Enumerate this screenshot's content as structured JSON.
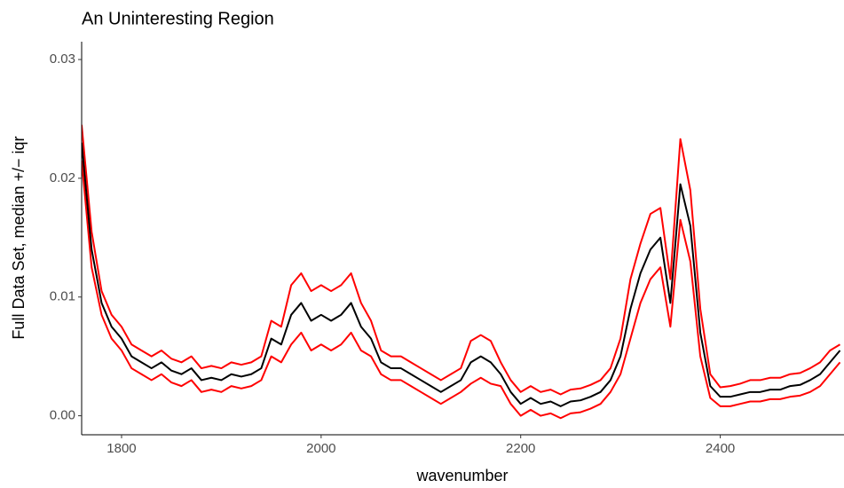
{
  "chart_data": {
    "type": "line",
    "title": "An Uninteresting Region",
    "x_label": "wavenumber",
    "y_label": "Full Data Set, median +/− iqr",
    "x": [
      1760,
      1770,
      1780,
      1790,
      1800,
      1810,
      1820,
      1830,
      1840,
      1850,
      1860,
      1870,
      1880,
      1890,
      1900,
      1910,
      1920,
      1930,
      1940,
      1950,
      1960,
      1970,
      1980,
      1990,
      2000,
      2010,
      2020,
      2030,
      2040,
      2050,
      2060,
      2070,
      2080,
      2090,
      2100,
      2110,
      2120,
      2130,
      2140,
      2150,
      2160,
      2170,
      2180,
      2190,
      2200,
      2210,
      2220,
      2230,
      2240,
      2250,
      2260,
      2270,
      2280,
      2290,
      2300,
      2310,
      2320,
      2330,
      2340,
      2350,
      2360,
      2370,
      2380,
      2390,
      2400,
      2410,
      2420,
      2430,
      2440,
      2450,
      2460,
      2470,
      2480,
      2490,
      2500,
      2510,
      2520
    ],
    "series": [
      {
        "color": "#ff0000",
        "values": [
          0.0215,
          0.0125,
          0.0085,
          0.0065,
          0.0055,
          0.004,
          0.0035,
          0.003,
          0.0035,
          0.0028,
          0.0025,
          0.003,
          0.002,
          0.0022,
          0.002,
          0.0025,
          0.0023,
          0.0025,
          0.003,
          0.005,
          0.0045,
          0.006,
          0.007,
          0.0055,
          0.006,
          0.0055,
          0.006,
          0.007,
          0.0055,
          0.005,
          0.0035,
          0.003,
          0.003,
          0.0025,
          0.002,
          0.0015,
          0.001,
          0.0015,
          0.002,
          0.0027,
          0.0032,
          0.0027,
          0.0025,
          0.001,
          0,
          0.0005,
          0,
          0.0002,
          -0.0002,
          0.0002,
          0.0003,
          0.0006,
          0.001,
          0.002,
          0.0035,
          0.0065,
          0.0095,
          0.0115,
          0.0125,
          0.0075,
          0.0165,
          0.013,
          0.005,
          0.0015,
          0.0008,
          0.0008,
          0.001,
          0.0012,
          0.0012,
          0.0014,
          0.0014,
          0.0016,
          0.0017,
          0.002,
          0.0025,
          0.0035,
          0.0045
        ]
      },
      {
        "color": "#ff0000",
        "values": [
          0.0245,
          0.0155,
          0.0105,
          0.0085,
          0.0075,
          0.006,
          0.0055,
          0.005,
          0.0055,
          0.0048,
          0.0045,
          0.005,
          0.004,
          0.0042,
          0.004,
          0.0045,
          0.0043,
          0.0045,
          0.005,
          0.008,
          0.0075,
          0.011,
          0.012,
          0.0105,
          0.011,
          0.0105,
          0.011,
          0.012,
          0.0095,
          0.008,
          0.0055,
          0.005,
          0.005,
          0.0045,
          0.004,
          0.0035,
          0.003,
          0.0035,
          0.004,
          0.0063,
          0.0068,
          0.0063,
          0.0045,
          0.003,
          0.002,
          0.0025,
          0.002,
          0.0022,
          0.0018,
          0.0022,
          0.0023,
          0.0026,
          0.003,
          0.004,
          0.0065,
          0.0115,
          0.0145,
          0.017,
          0.0175,
          0.0115,
          0.0233,
          0.019,
          0.009,
          0.0035,
          0.0024,
          0.0025,
          0.0027,
          0.003,
          0.003,
          0.0032,
          0.0032,
          0.0035,
          0.0036,
          0.004,
          0.0045,
          0.0055,
          0.006
        ]
      },
      {
        "color": "#000000",
        "values": [
          0.023,
          0.014,
          0.0095,
          0.0075,
          0.0065,
          0.005,
          0.0045,
          0.004,
          0.0045,
          0.0038,
          0.0035,
          0.004,
          0.003,
          0.0032,
          0.003,
          0.0035,
          0.0033,
          0.0035,
          0.004,
          0.0065,
          0.006,
          0.0085,
          0.0095,
          0.008,
          0.0085,
          0.008,
          0.0085,
          0.0095,
          0.0075,
          0.0065,
          0.0045,
          0.004,
          0.004,
          0.0035,
          0.003,
          0.0025,
          0.002,
          0.0025,
          0.003,
          0.0045,
          0.005,
          0.0045,
          0.0035,
          0.002,
          0.001,
          0.0015,
          0.001,
          0.0012,
          0.0008,
          0.0012,
          0.0013,
          0.0016,
          0.002,
          0.003,
          0.005,
          0.009,
          0.012,
          0.014,
          0.015,
          0.0095,
          0.0195,
          0.016,
          0.007,
          0.0025,
          0.0016,
          0.0016,
          0.0018,
          0.002,
          0.002,
          0.0022,
          0.0022,
          0.0025,
          0.0026,
          0.003,
          0.0035,
          0.0045,
          0.0055
        ]
      }
    ],
    "xlim": [
      1760,
      2524
    ],
    "ylim": [
      -0.0016,
      0.0315
    ],
    "xticks": [
      1800,
      2000,
      2200,
      2400
    ],
    "yticks": [
      {
        "value": 0,
        "label": "0.00"
      },
      {
        "value": 0.01,
        "label": "0.01"
      },
      {
        "value": 0.02,
        "label": "0.02"
      },
      {
        "value": 0.03,
        "label": "0.03"
      }
    ],
    "grid": false
  }
}
